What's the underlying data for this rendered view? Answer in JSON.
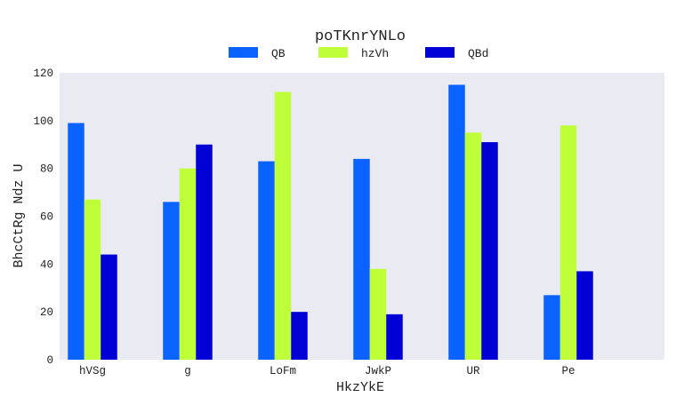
{
  "chart_data": {
    "type": "bar",
    "title": "poTKnrYNLo",
    "xlabel": "HkzYkE",
    "ylabel": "BhcCtRg Ndz U",
    "categories": [
      "hVSg",
      "g",
      "LoFm",
      "JwkP",
      "UR",
      "Pe"
    ],
    "series": [
      {
        "name": "QB",
        "color": "#0a63ff",
        "values": [
          99,
          66,
          83,
          84,
          115,
          27
        ]
      },
      {
        "name": "hzVh",
        "color": "#bfff3a",
        "values": [
          67,
          80,
          112,
          38,
          95,
          98
        ]
      },
      {
        "name": "QBd",
        "color": "#0000d6",
        "values": [
          44,
          90,
          20,
          19,
          91,
          37
        ]
      }
    ],
    "ylim": [
      0,
      120
    ],
    "yticks": [
      0,
      20,
      40,
      60,
      80,
      100,
      120
    ],
    "grid": false,
    "legend_position": "top-center",
    "plot_background": "#eaeaf2"
  }
}
